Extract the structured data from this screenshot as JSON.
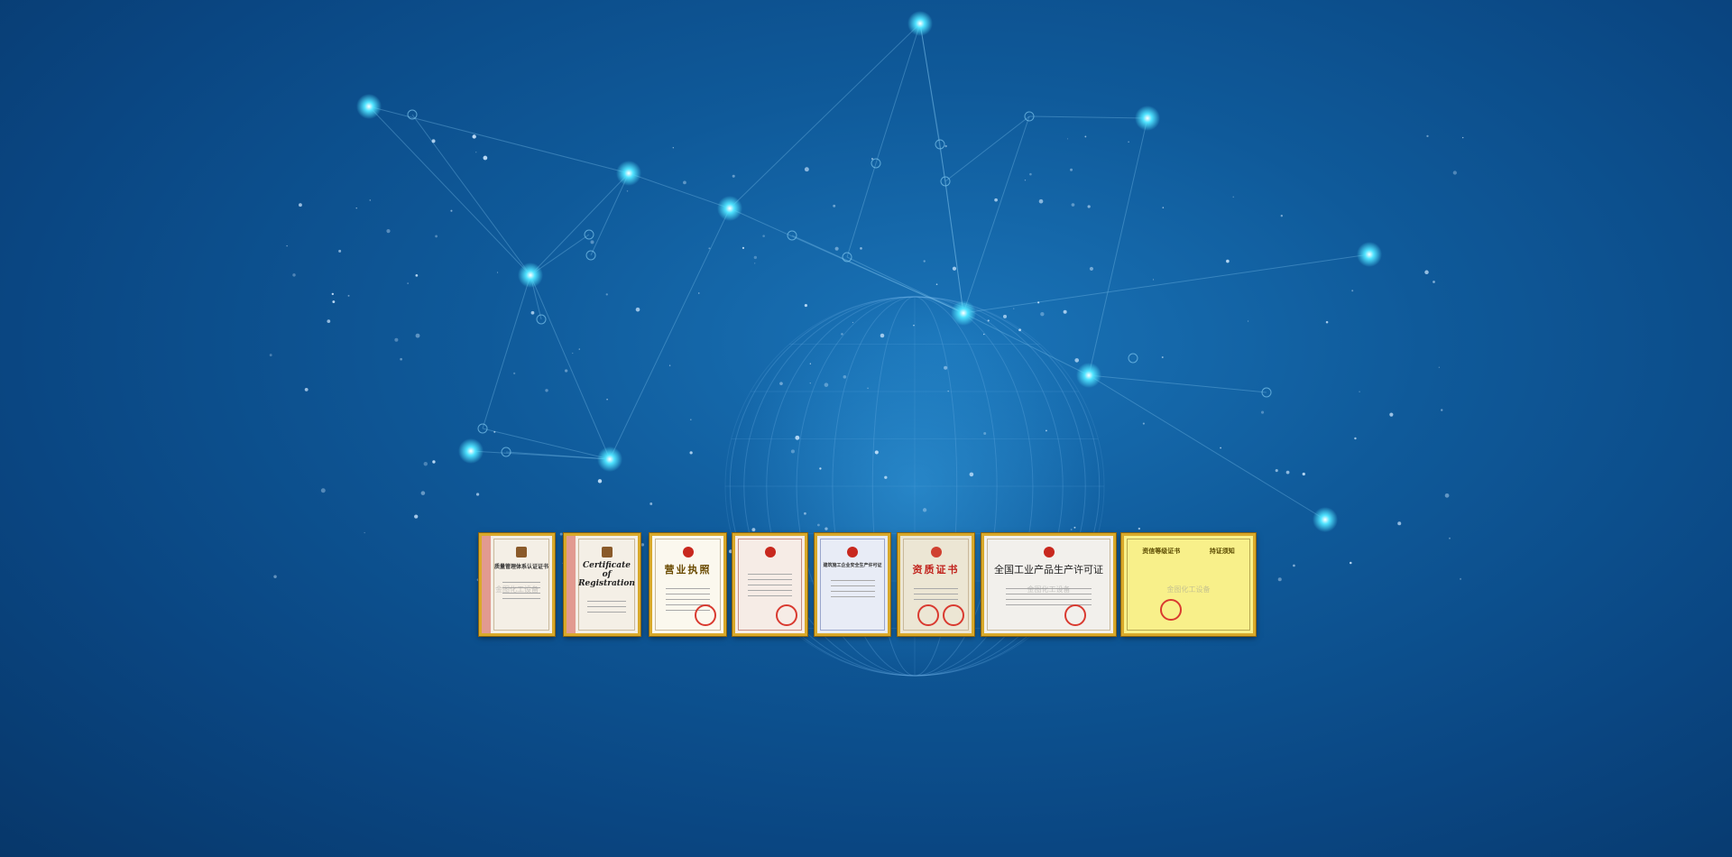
{
  "background": {
    "color": "#0f5a9a",
    "node_color": "#4fe3ff",
    "line_color": "#7fc4ee"
  },
  "watermark": "金图化工设备",
  "certificates": [
    {
      "title": "质量管理体系认证证书",
      "style": "iso"
    },
    {
      "title": "Certificate of Registration",
      "style": "iso"
    },
    {
      "title": "营业执照",
      "style": "license"
    },
    {
      "title": "",
      "style": "plain"
    },
    {
      "title": "建筑施工企业安全生产许可证",
      "style": "blue"
    },
    {
      "title": "资质证书",
      "style": "gold"
    },
    {
      "title": "全国工业产品生产许可证",
      "style": "wide"
    },
    {
      "title": "资信等级证书",
      "title2": "持证须知",
      "style": "yellow"
    }
  ]
}
